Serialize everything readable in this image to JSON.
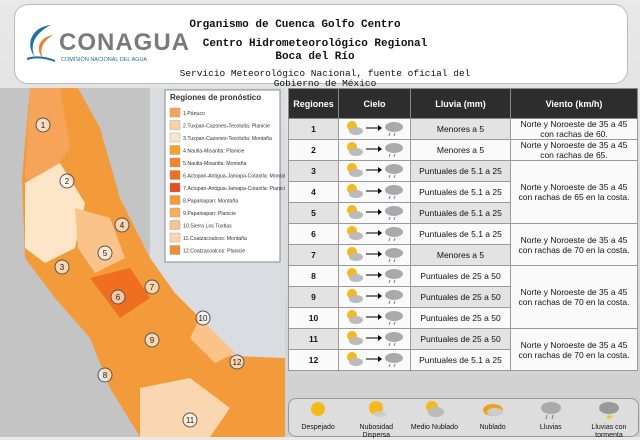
{
  "header": {
    "logo": "CONAGUA",
    "logo_subtitle": "COMISIÓN NACIONAL DEL AGUA",
    "line1": "Organismo de Cuenca Golfo Centro",
    "line2": "Centro Hidrometeorológico Regional",
    "line3": "Boca del Río",
    "line4": "Servicio Meteorológico Nacional, fuente oficial del Gobierno de México"
  },
  "map": {
    "legend_title": "Regiones de pronóstico",
    "legend": [
      {
        "label": "1.Pánuco",
        "color": "#f6a45a"
      },
      {
        "label": "2.Tuxpan-Cazones-Tecolutla: Planicie",
        "color": "#fbd3a3"
      },
      {
        "label": "3.Tuxpan-Cazones-Tecolutla: Montaña",
        "color": "#fde6c8"
      },
      {
        "label": "4.Nautla-Misantla: Planicie",
        "color": "#f5a12a"
      },
      {
        "label": "5.Nautla-Misantla: Montaña",
        "color": "#f38428"
      },
      {
        "label": "6.Actopan-Antigua-Jamapa-Cotaxtla: Montaña",
        "color": "#ef6e1f"
      },
      {
        "label": "7.Actopan-Antigua-Jamapa-Cotaxtla: Planicie",
        "color": "#e4501d"
      },
      {
        "label": "8.Papaloapan: Montaña",
        "color": "#f39a3a"
      },
      {
        "label": "9.Papaloapan: Planicie",
        "color": "#f8ae55"
      },
      {
        "label": "10.Sierra Los Tuxtlas",
        "color": "#f9c38a"
      },
      {
        "label": "11.Coatzacoalcos: Montaña",
        "color": "#fad7b0"
      },
      {
        "label": "12.Coatzacoalcos: Planicie",
        "color": "#f08c3c"
      }
    ],
    "markers": [
      "1",
      "2",
      "3",
      "4",
      "5",
      "6",
      "7",
      "8",
      "9",
      "10",
      "11",
      "12"
    ]
  },
  "table": {
    "headers": [
      "Regiones",
      "Cielo",
      "Lluvia (mm)",
      "Viento (km/h)"
    ],
    "rows": [
      {
        "region": "1",
        "rain": "Menores a 5",
        "wind": "Norte y Noroeste de 35 a 45 con rachas de 60."
      },
      {
        "region": "2",
        "rain": "Menores a 5",
        "wind": "Norte y Noroeste de 35 a 45 con rachas de 65."
      },
      {
        "region": "3",
        "rain": "Puntuales de 5.1 a 25",
        "wind": "Norte y Noroeste de 35 a 45 con rachas de 65 en la costa."
      },
      {
        "region": "4",
        "rain": "Puntuales de 5.1 a 25",
        "wind": null
      },
      {
        "region": "5",
        "rain": "Puntuales de 5.1 a 25",
        "wind": null
      },
      {
        "region": "6",
        "rain": "Puntuales de 5.1 a 25",
        "wind": "Norte y Noroeste de 35 a 45 con rachas de 70 en la costa."
      },
      {
        "region": "7",
        "rain": "Menores a 5",
        "wind": null
      },
      {
        "region": "8",
        "rain": "Puntuales de 25 a 50",
        "wind": "Norte y Noroeste de 35 a 45 con rachas de 70 en la costa."
      },
      {
        "region": "9",
        "rain": "Puntuales de 25 a 50",
        "wind": null
      },
      {
        "region": "10",
        "rain": "Puntuales de 25 a 50",
        "wind": null
      },
      {
        "region": "11",
        "rain": "Puntuales de 25 a 50",
        "wind": "Norte y Noroeste de 35 a 45 con rachas de 70 en la costa."
      },
      {
        "region": "12",
        "rain": "Puntuales de 5.1 a 25",
        "wind": null
      }
    ]
  },
  "sky_legend": [
    "Despejado",
    "Nubosidad Dispersa",
    "Medio Nublado",
    "Nublado",
    "Lluvias",
    "Lluvias con tormenta"
  ]
}
